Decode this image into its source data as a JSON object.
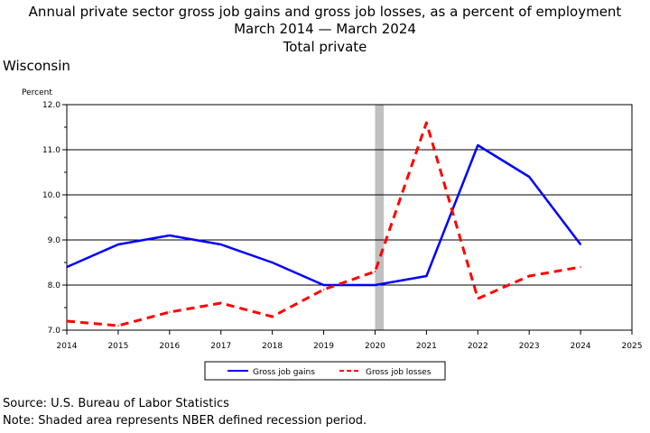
{
  "title": {
    "line1": "Annual private sector gross job gains and gross job losses, as a percent of employment",
    "line2": "March 2014 — March 2024",
    "line3": "Total private"
  },
  "region": "Wisconsin",
  "footer": {
    "source": "Source: U.S. Bureau of Labor Statistics",
    "note": "Note: Shaded area represents NBER defined recession period."
  },
  "chart_data": {
    "type": "line",
    "ylabel": "Percent",
    "xlim": [
      2014,
      2025
    ],
    "ylim": [
      7.0,
      12.0
    ],
    "x_ticks": [
      "2014",
      "2015",
      "2016",
      "2017",
      "2018",
      "2019",
      "2020",
      "2021",
      "2022",
      "2023",
      "2024",
      "2025"
    ],
    "y_ticks": [
      "7.0",
      "8.0",
      "9.0",
      "10.0",
      "11.0",
      "12.0"
    ],
    "grid": "horizontal",
    "recession": {
      "start": 2020.0,
      "end": 2020.17,
      "color": "#c0c0c0"
    },
    "series": [
      {
        "name": "Gross job gains",
        "color": "#0000ff",
        "style": "solid",
        "x": [
          2014,
          2015,
          2016,
          2017,
          2018,
          2019,
          2020,
          2021,
          2022,
          2023,
          2024
        ],
        "y": [
          8.4,
          8.9,
          9.1,
          8.9,
          8.5,
          8.0,
          8.0,
          8.2,
          11.1,
          10.4,
          8.9
        ]
      },
      {
        "name": "Gross job losses",
        "color": "#ff0000",
        "style": "dashed",
        "x": [
          2014,
          2015,
          2016,
          2017,
          2018,
          2019,
          2020,
          2021,
          2022,
          2023,
          2024
        ],
        "y": [
          7.2,
          7.1,
          7.4,
          7.6,
          7.3,
          7.9,
          8.3,
          11.6,
          7.7,
          8.2,
          8.4
        ]
      }
    ],
    "legend_position": "bottom"
  }
}
